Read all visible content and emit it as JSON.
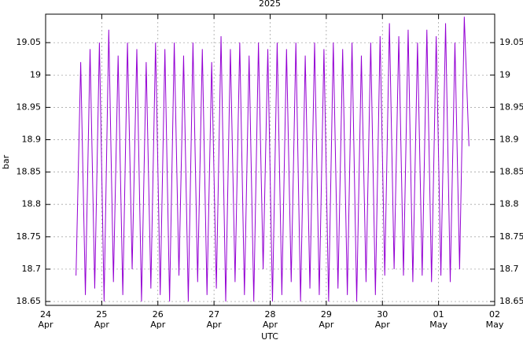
{
  "chart_data": {
    "type": "line",
    "title": "2025",
    "x_label": "UTC",
    "y_label": "bar",
    "x": [
      "2025-04-24T13:00",
      "2025-04-24T15:00",
      "2025-04-24T17:00",
      "2025-04-24T19:00",
      "2025-04-24T21:00",
      "2025-04-24T23:00",
      "2025-04-25T01:00",
      "2025-04-25T03:00",
      "2025-04-25T05:00",
      "2025-04-25T07:00",
      "2025-04-25T09:00",
      "2025-04-25T11:00",
      "2025-04-25T13:00",
      "2025-04-25T15:00",
      "2025-04-25T17:00",
      "2025-04-25T19:00",
      "2025-04-25T21:00",
      "2025-04-25T23:00",
      "2025-04-26T01:00",
      "2025-04-26T03:00",
      "2025-04-26T05:00",
      "2025-04-26T07:00",
      "2025-04-26T09:00",
      "2025-04-26T11:00",
      "2025-04-26T13:00",
      "2025-04-26T15:00",
      "2025-04-26T17:00",
      "2025-04-26T19:00",
      "2025-04-26T21:00",
      "2025-04-26T23:00",
      "2025-04-27T01:00",
      "2025-04-27T03:00",
      "2025-04-27T05:00",
      "2025-04-27T07:00",
      "2025-04-27T09:00",
      "2025-04-27T11:00",
      "2025-04-27T13:00",
      "2025-04-27T15:00",
      "2025-04-27T17:00",
      "2025-04-27T19:00",
      "2025-04-27T21:00",
      "2025-04-27T23:00",
      "2025-04-28T01:00",
      "2025-04-28T03:00",
      "2025-04-28T05:00",
      "2025-04-28T07:00",
      "2025-04-28T09:00",
      "2025-04-28T11:00",
      "2025-04-28T13:00",
      "2025-04-28T15:00",
      "2025-04-28T17:00",
      "2025-04-28T19:00",
      "2025-04-28T21:00",
      "2025-04-28T23:00",
      "2025-04-29T01:00",
      "2025-04-29T03:00",
      "2025-04-29T05:00",
      "2025-04-29T07:00",
      "2025-04-29T09:00",
      "2025-04-29T11:00",
      "2025-04-29T13:00",
      "2025-04-29T15:00",
      "2025-04-29T17:00",
      "2025-04-29T19:00",
      "2025-04-29T21:00",
      "2025-04-29T23:00",
      "2025-04-30T01:00",
      "2025-04-30T03:00",
      "2025-04-30T05:00",
      "2025-04-30T07:00",
      "2025-04-30T09:00",
      "2025-04-30T11:00",
      "2025-04-30T13:00",
      "2025-04-30T15:00",
      "2025-04-30T17:00",
      "2025-04-30T19:00",
      "2025-04-30T21:00",
      "2025-04-30T23:00",
      "2025-05-01T01:00",
      "2025-05-01T03:00",
      "2025-05-01T05:00",
      "2025-05-01T07:00",
      "2025-05-01T09:00",
      "2025-05-01T11:00",
      "2025-05-01T13:00"
    ],
    "series": [
      {
        "name": "bar",
        "color": "#9400d3",
        "values": [
          18.69,
          19.02,
          18.66,
          19.04,
          18.67,
          19.05,
          18.65,
          19.07,
          18.68,
          19.03,
          18.66,
          19.05,
          18.7,
          19.04,
          18.65,
          19.02,
          18.67,
          19.05,
          18.66,
          19.04,
          18.65,
          19.05,
          18.69,
          19.03,
          18.65,
          19.05,
          18.68,
          19.04,
          18.66,
          19.02,
          18.67,
          19.06,
          18.65,
          19.04,
          18.68,
          19.05,
          18.66,
          19.03,
          18.65,
          19.05,
          18.7,
          19.04,
          18.65,
          19.05,
          18.66,
          19.04,
          18.68,
          19.05,
          18.65,
          19.03,
          18.67,
          19.05,
          18.66,
          19.04,
          18.65,
          19.05,
          18.67,
          19.04,
          18.66,
          19.05,
          18.65,
          19.03,
          18.68,
          19.05,
          18.66,
          19.06,
          18.69,
          19.08,
          18.7,
          19.06,
          18.69,
          19.07,
          18.68,
          19.05,
          18.69,
          19.07,
          18.68,
          19.06,
          18.69,
          19.08,
          18.68,
          19.05,
          18.7,
          19.09,
          18.89
        ]
      }
    ],
    "xlim": [
      "2025-04-24",
      "2025-05-02"
    ],
    "xticks": [
      {
        "value": "2025-04-24",
        "label": "24\nApr"
      },
      {
        "value": "2025-04-25",
        "label": "25\nApr"
      },
      {
        "value": "2025-04-26",
        "label": "26\nApr"
      },
      {
        "value": "2025-04-27",
        "label": "27\nApr"
      },
      {
        "value": "2025-04-28",
        "label": "28\nApr"
      },
      {
        "value": "2025-04-29",
        "label": "29\nApr"
      },
      {
        "value": "2025-04-30",
        "label": "30\nApr"
      },
      {
        "value": "2025-05-01",
        "label": "01\nMay"
      },
      {
        "value": "2025-05-02",
        "label": "02\nMay"
      }
    ],
    "ylim": [
      18.644,
      19.094
    ],
    "yticks": [
      18.65,
      18.7,
      18.75,
      18.8,
      18.85,
      18.9,
      18.95,
      19,
      19.05
    ],
    "grid": true
  }
}
